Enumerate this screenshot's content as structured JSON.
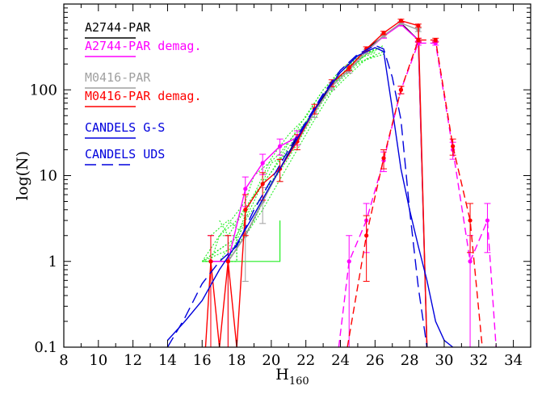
{
  "chart_data": {
    "type": "line",
    "xlabel": "H",
    "xlabel_sub": "160",
    "ylabel": "log(N)",
    "xlim": [
      8,
      35
    ],
    "ylim": [
      0.1,
      1000
    ],
    "yscale": "log",
    "xticks": [
      8,
      10,
      12,
      14,
      16,
      18,
      20,
      22,
      24,
      26,
      28,
      30,
      32,
      34
    ],
    "yticks": [
      {
        "value": 0.1,
        "label": "0.1"
      },
      {
        "value": 1,
        "label": "1"
      },
      {
        "value": 10,
        "label": "10"
      },
      {
        "value": 100,
        "label": "100"
      }
    ],
    "legend_position": "top-left",
    "series": [
      {
        "name": "A2744-PAR",
        "color": "#000000",
        "dash": "solid",
        "markers": false,
        "x": [
          16.5,
          17.5,
          18.5,
          19.5,
          20.5,
          21.5,
          22.5,
          23.5,
          24.5,
          25.5,
          26.5,
          27.5,
          28.5,
          29.0
        ],
        "y": [
          1,
          1,
          2,
          5,
          12,
          28,
          55,
          120,
          180,
          300,
          420,
          600,
          380,
          0.1
        ]
      },
      {
        "name": "A2744-PAR demag.",
        "color": "#ff00ff",
        "dash": "solid",
        "markers": true,
        "x": [
          16.5,
          17.5,
          18.5,
          19.5,
          20.5,
          21.5,
          22.5,
          23.5,
          24.5,
          25.5,
          26.5,
          27.5,
          28.5,
          29.0
        ],
        "y": [
          1,
          1,
          7,
          14,
          22,
          28,
          55,
          110,
          170,
          280,
          420,
          580,
          380,
          0.1
        ]
      },
      {
        "name": "M0416-PAR",
        "color": "#a0a0a0",
        "dash": "solid",
        "markers": true,
        "x": [
          17.5,
          18.5,
          19.5,
          20.5,
          21.5,
          22.5,
          23.5,
          24.5,
          25.5,
          26.5,
          27.5,
          28.5,
          29.0
        ],
        "y": [
          1,
          2,
          5,
          12,
          25,
          55,
          110,
          170,
          280,
          430,
          600,
          500,
          0.1
        ]
      },
      {
        "name": "M0416-PAR demag.",
        "color": "#ff0000",
        "dash": "solid",
        "markers": true,
        "x": [
          16.2,
          16.5,
          17.0,
          17.5,
          18.0,
          18.5,
          19.5,
          20.5,
          21.5,
          22.5,
          23.5,
          24.5,
          25.5,
          26.5,
          27.5,
          28.5,
          29.0
        ],
        "y": [
          0.1,
          1,
          0.1,
          1,
          0.1,
          4,
          8,
          12,
          25,
          60,
          120,
          180,
          300,
          460,
          640,
          560,
          0.1
        ]
      },
      {
        "name": "CANDELS G-S",
        "color": "#0000dd",
        "dash": "solid",
        "markers": false,
        "x": [
          14.0,
          15.0,
          16.0,
          17.0,
          18.0,
          19.0,
          20.0,
          21.0,
          22.0,
          23.0,
          24.0,
          25.0,
          26.0,
          26.5,
          27.0,
          27.5,
          28.0,
          28.5,
          29.0,
          29.5,
          30.0,
          30.5
        ],
        "y": [
          0.12,
          0.2,
          0.35,
          0.8,
          1.6,
          3.5,
          8,
          18,
          40,
          85,
          160,
          250,
          310,
          280,
          60,
          12,
          4,
          1.5,
          0.6,
          0.2,
          0.12,
          0.1
        ]
      },
      {
        "name": "CANDELS UDS",
        "color": "#0000dd",
        "dash": "long",
        "markers": false,
        "x": [
          14.0,
          15.0,
          16.0,
          17.0,
          18.0,
          19.0,
          20.0,
          21.0,
          22.0,
          23.0,
          24.0,
          25.0,
          26.0,
          26.5,
          27.0,
          27.5,
          28.0,
          28.5,
          29.0
        ],
        "y": [
          0.1,
          0.22,
          0.55,
          1.0,
          1.5,
          4.0,
          9,
          20,
          42,
          90,
          170,
          260,
          330,
          300,
          140,
          45,
          4,
          0.5,
          0.1
        ]
      },
      {
        "name": "",
        "color": "#ff00ff",
        "dash": "dashed",
        "markers": true,
        "x": [
          23.9,
          24.5,
          25.5,
          26.5,
          27.5,
          28.5,
          29.5,
          30.5,
          31.5,
          32.5,
          33.0
        ],
        "y": [
          0.1,
          1,
          3,
          15,
          100,
          350,
          350,
          20,
          1,
          3,
          0.1
        ]
      },
      {
        "name": "",
        "color": "#ff0000",
        "dash": "dashed",
        "markers": true,
        "x": [
          24.4,
          25.5,
          26.5,
          27.5,
          28.5,
          29.5,
          30.5,
          31.5,
          32.2
        ],
        "y": [
          0.1,
          2,
          16,
          100,
          380,
          380,
          22,
          3,
          0.1
        ]
      }
    ],
    "green_band": [
      {
        "x": [
          16.0,
          17.5,
          18.5,
          19.5,
          20.5,
          21.5,
          22.5,
          23.5,
          24.5,
          25.5,
          26.5
        ],
        "y": [
          1,
          1,
          3,
          6,
          12,
          26,
          55,
          110,
          170,
          260,
          330
        ]
      },
      {
        "x": [
          16.0,
          17.0,
          18.0,
          19.0,
          20.0,
          21.0,
          22.0,
          23.0,
          24.0,
          25.0,
          26.0
        ],
        "y": [
          1,
          2,
          3,
          6,
          11,
          24,
          50,
          100,
          160,
          240,
          300
        ]
      },
      {
        "x": [
          16.5,
          17.5,
          18.5,
          19.5,
          20.5,
          21.5,
          22.5,
          23.5,
          24.5,
          25.5,
          26.5
        ],
        "y": [
          2,
          3,
          2,
          4,
          9,
          20,
          45,
          95,
          150,
          230,
          280
        ]
      },
      {
        "x": [
          17.0,
          17.5,
          18.5,
          19.5,
          20.5,
          21.5,
          22.5,
          23.5,
          24.5,
          25.5,
          26.0
        ],
        "y": [
          3,
          2,
          4,
          8,
          15,
          30,
          60,
          115,
          180,
          260,
          280
        ]
      },
      {
        "x": [
          16.0,
          17.0,
          18.0,
          19.0,
          20.0,
          21.0,
          22.0,
          23.0,
          24.0,
          25.0,
          26.5
        ],
        "y": [
          1,
          1,
          2,
          5,
          14,
          18,
          40,
          90,
          140,
          210,
          260
        ]
      },
      {
        "x": [
          16.5,
          17.0,
          18.5,
          19.0,
          20.5,
          21.0,
          22.5,
          23.0,
          24.5,
          25.0,
          26.0
        ],
        "y": [
          1,
          2,
          5,
          10,
          18,
          25,
          55,
          85,
          190,
          230,
          270
        ]
      },
      {
        "x": [
          16.0,
          18.0,
          19.0,
          20.0,
          21.0,
          22.0,
          23.0,
          24.0,
          25.0,
          26.0
        ],
        "y": [
          1,
          1.5,
          3,
          8,
          16,
          35,
          75,
          130,
          200,
          250
        ]
      },
      {
        "x": [
          17.0,
          18.0,
          19.0,
          20.0,
          21.0,
          22.0,
          23.0,
          24.0,
          25.0,
          26.5
        ],
        "y": [
          2,
          2,
          6,
          16,
          30,
          48,
          100,
          170,
          250,
          310
        ]
      }
    ]
  }
}
